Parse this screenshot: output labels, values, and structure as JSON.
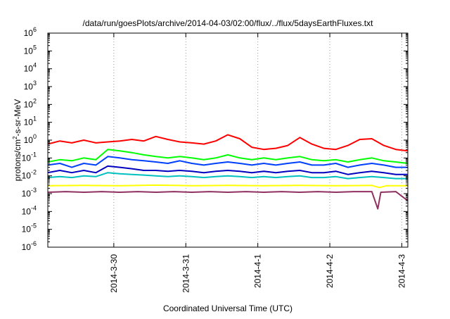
{
  "chart_data": {
    "type": "line",
    "title": "/data/run/goesPlots/archive/2014-04-03/02:00/flux/../flux/5daysEarthFluxes.txt",
    "xlabel": "Coordinated Universal Time (UTC)",
    "ylabel": "protons/cm²-s-sr-MeV",
    "ylabel_parts": {
      "base": "protons/cm",
      "sup": "2",
      "rest": "-s-sr-MeV"
    },
    "y_scale": "log",
    "ylim": [
      1e-06,
      1000000.0
    ],
    "y_ticks": [
      {
        "exp": -6,
        "base": "10",
        "sup": "-6"
      },
      {
        "exp": -5,
        "base": "10",
        "sup": "-5"
      },
      {
        "exp": -4,
        "base": "10",
        "sup": "-4"
      },
      {
        "exp": -3,
        "base": "10",
        "sup": "-3"
      },
      {
        "exp": -2,
        "base": "10",
        "sup": "-2"
      },
      {
        "exp": -1,
        "base": "10",
        "sup": "-1"
      },
      {
        "exp": 0,
        "base": "10",
        "sup": "0"
      },
      {
        "exp": 1,
        "base": "10",
        "sup": "1"
      },
      {
        "exp": 2,
        "base": "10",
        "sup": "2"
      },
      {
        "exp": 3,
        "base": "10",
        "sup": "3"
      },
      {
        "exp": 4,
        "base": "10",
        "sup": "4"
      },
      {
        "exp": 5,
        "base": "10",
        "sup": "5"
      },
      {
        "exp": 6,
        "base": "10",
        "sup": "6"
      }
    ],
    "xlim": [
      "2014-03-29T02:00",
      "2014-04-03T02:00"
    ],
    "x_ticks": [
      {
        "value": "2014-03-30T00:00",
        "label": "2014-3-30"
      },
      {
        "value": "2014-03-31T00:00",
        "label": "2014-3-31"
      },
      {
        "value": "2014-04-01T00:00",
        "label": "2014-4-1"
      },
      {
        "value": "2014-04-02T00:00",
        "label": "2014-4-2"
      },
      {
        "value": "2014-04-03T00:00",
        "label": "2014-4-3"
      }
    ],
    "grid": "vertical dotted at x ticks",
    "series": [
      {
        "color": "#ff0000",
        "points": [
          [
            "2014-03-29T02:00",
            0.6
          ],
          [
            "2014-03-29T06:00",
            0.9
          ],
          [
            "2014-03-29T10:00",
            0.7
          ],
          [
            "2014-03-29T14:00",
            1.0
          ],
          [
            "2014-03-29T18:00",
            0.7
          ],
          [
            "2014-03-29T22:00",
            0.8
          ],
          [
            "2014-03-30T02:00",
            0.9
          ],
          [
            "2014-03-30T06:00",
            1.1
          ],
          [
            "2014-03-30T10:00",
            0.9
          ],
          [
            "2014-03-30T14:00",
            1.6
          ],
          [
            "2014-03-30T18:00",
            1.1
          ],
          [
            "2014-03-30T22:00",
            0.8
          ],
          [
            "2014-03-31T02:00",
            0.7
          ],
          [
            "2014-03-31T06:00",
            0.6
          ],
          [
            "2014-03-31T10:00",
            0.9
          ],
          [
            "2014-03-31T14:00",
            2.0
          ],
          [
            "2014-03-31T18:00",
            1.2
          ],
          [
            "2014-03-31T22:00",
            0.4
          ],
          [
            "2014-04-01T02:00",
            0.3
          ],
          [
            "2014-04-01T06:00",
            0.35
          ],
          [
            "2014-04-01T10:00",
            0.5
          ],
          [
            "2014-04-01T14:00",
            1.4
          ],
          [
            "2014-04-01T18:00",
            0.6
          ],
          [
            "2014-04-01T22:00",
            0.35
          ],
          [
            "2014-04-02T02:00",
            0.3
          ],
          [
            "2014-04-02T06:00",
            0.5
          ],
          [
            "2014-04-02T10:00",
            1.1
          ],
          [
            "2014-04-02T14:00",
            1.2
          ],
          [
            "2014-04-02T18:00",
            0.5
          ],
          [
            "2014-04-02T22:00",
            0.3
          ],
          [
            "2014-04-03T02:00",
            0.25
          ]
        ]
      },
      {
        "color": "#00ff00",
        "points": [
          [
            "2014-03-29T02:00",
            0.06
          ],
          [
            "2014-03-29T06:00",
            0.08
          ],
          [
            "2014-03-29T10:00",
            0.07
          ],
          [
            "2014-03-29T14:00",
            0.1
          ],
          [
            "2014-03-29T18:00",
            0.08
          ],
          [
            "2014-03-29T22:00",
            0.3
          ],
          [
            "2014-03-30T02:00",
            0.25
          ],
          [
            "2014-03-30T06:00",
            0.2
          ],
          [
            "2014-03-30T10:00",
            0.15
          ],
          [
            "2014-03-30T14:00",
            0.12
          ],
          [
            "2014-03-30T18:00",
            0.1
          ],
          [
            "2014-03-30T22:00",
            0.12
          ],
          [
            "2014-03-31T02:00",
            0.1
          ],
          [
            "2014-03-31T06:00",
            0.08
          ],
          [
            "2014-03-31T10:00",
            0.1
          ],
          [
            "2014-03-31T14:00",
            0.15
          ],
          [
            "2014-03-31T18:00",
            0.1
          ],
          [
            "2014-03-31T22:00",
            0.08
          ],
          [
            "2014-04-01T02:00",
            0.1
          ],
          [
            "2014-04-01T06:00",
            0.08
          ],
          [
            "2014-04-01T10:00",
            0.1
          ],
          [
            "2014-04-01T14:00",
            0.12
          ],
          [
            "2014-04-01T18:00",
            0.08
          ],
          [
            "2014-04-01T22:00",
            0.07
          ],
          [
            "2014-04-02T02:00",
            0.08
          ],
          [
            "2014-04-02T06:00",
            0.06
          ],
          [
            "2014-04-02T10:00",
            0.08
          ],
          [
            "2014-04-02T14:00",
            0.1
          ],
          [
            "2014-04-02T18:00",
            0.07
          ],
          [
            "2014-04-02T22:00",
            0.06
          ],
          [
            "2014-04-03T02:00",
            0.05
          ]
        ]
      },
      {
        "color": "#0040ff",
        "points": [
          [
            "2014-03-29T02:00",
            0.04
          ],
          [
            "2014-03-29T06:00",
            0.05
          ],
          [
            "2014-03-29T10:00",
            0.03
          ],
          [
            "2014-03-29T14:00",
            0.05
          ],
          [
            "2014-03-29T18:00",
            0.04
          ],
          [
            "2014-03-29T22:00",
            0.12
          ],
          [
            "2014-03-30T02:00",
            0.1
          ],
          [
            "2014-03-30T06:00",
            0.08
          ],
          [
            "2014-03-30T10:00",
            0.07
          ],
          [
            "2014-03-30T14:00",
            0.06
          ],
          [
            "2014-03-30T18:00",
            0.05
          ],
          [
            "2014-03-30T22:00",
            0.07
          ],
          [
            "2014-03-31T02:00",
            0.05
          ],
          [
            "2014-03-31T06:00",
            0.04
          ],
          [
            "2014-03-31T10:00",
            0.05
          ],
          [
            "2014-03-31T14:00",
            0.06
          ],
          [
            "2014-03-31T18:00",
            0.05
          ],
          [
            "2014-03-31T22:00",
            0.04
          ],
          [
            "2014-04-01T02:00",
            0.05
          ],
          [
            "2014-04-01T06:00",
            0.04
          ],
          [
            "2014-04-01T10:00",
            0.05
          ],
          [
            "2014-04-01T14:00",
            0.06
          ],
          [
            "2014-04-01T18:00",
            0.04
          ],
          [
            "2014-04-01T22:00",
            0.04
          ],
          [
            "2014-04-02T02:00",
            0.05
          ],
          [
            "2014-04-02T06:00",
            0.03
          ],
          [
            "2014-04-02T10:00",
            0.04
          ],
          [
            "2014-04-02T14:00",
            0.05
          ],
          [
            "2014-04-02T18:00",
            0.04
          ],
          [
            "2014-04-02T22:00",
            0.03
          ],
          [
            "2014-04-03T02:00",
            0.03
          ]
        ]
      },
      {
        "color": "#0000c0",
        "points": [
          [
            "2014-03-29T02:00",
            0.015
          ],
          [
            "2014-03-29T06:00",
            0.02
          ],
          [
            "2014-03-29T10:00",
            0.015
          ],
          [
            "2014-03-29T14:00",
            0.02
          ],
          [
            "2014-03-29T18:00",
            0.015
          ],
          [
            "2014-03-29T22:00",
            0.035
          ],
          [
            "2014-03-30T02:00",
            0.03
          ],
          [
            "2014-03-30T06:00",
            0.025
          ],
          [
            "2014-03-30T10:00",
            0.02
          ],
          [
            "2014-03-30T14:00",
            0.02
          ],
          [
            "2014-03-30T18:00",
            0.018
          ],
          [
            "2014-03-30T22:00",
            0.02
          ],
          [
            "2014-03-31T02:00",
            0.018
          ],
          [
            "2014-03-31T06:00",
            0.015
          ],
          [
            "2014-03-31T10:00",
            0.018
          ],
          [
            "2014-03-31T14:00",
            0.02
          ],
          [
            "2014-03-31T18:00",
            0.018
          ],
          [
            "2014-03-31T22:00",
            0.015
          ],
          [
            "2014-04-01T02:00",
            0.018
          ],
          [
            "2014-04-01T06:00",
            0.015
          ],
          [
            "2014-04-01T10:00",
            0.018
          ],
          [
            "2014-04-01T14:00",
            0.02
          ],
          [
            "2014-04-01T18:00",
            0.015
          ],
          [
            "2014-04-01T22:00",
            0.015
          ],
          [
            "2014-04-02T02:00",
            0.018
          ],
          [
            "2014-04-02T06:00",
            0.012
          ],
          [
            "2014-04-02T10:00",
            0.015
          ],
          [
            "2014-04-02T14:00",
            0.018
          ],
          [
            "2014-04-02T18:00",
            0.015
          ],
          [
            "2014-04-02T22:00",
            0.012
          ],
          [
            "2014-04-03T02:00",
            0.012
          ]
        ]
      },
      {
        "color": "#00c0c0",
        "points": [
          [
            "2014-03-29T02:00",
            0.008
          ],
          [
            "2014-03-29T06:00",
            0.009
          ],
          [
            "2014-03-29T10:00",
            0.008
          ],
          [
            "2014-03-29T14:00",
            0.01
          ],
          [
            "2014-03-29T18:00",
            0.009
          ],
          [
            "2014-03-29T22:00",
            0.015
          ],
          [
            "2014-03-30T02:00",
            0.013
          ],
          [
            "2014-03-30T06:00",
            0.012
          ],
          [
            "2014-03-30T10:00",
            0.011
          ],
          [
            "2014-03-30T14:00",
            0.01
          ],
          [
            "2014-03-30T18:00",
            0.009
          ],
          [
            "2014-03-30T22:00",
            0.01
          ],
          [
            "2014-03-31T02:00",
            0.009
          ],
          [
            "2014-03-31T06:00",
            0.008
          ],
          [
            "2014-03-31T10:00",
            0.009
          ],
          [
            "2014-03-31T14:00",
            0.01
          ],
          [
            "2014-03-31T18:00",
            0.009
          ],
          [
            "2014-03-31T22:00",
            0.008
          ],
          [
            "2014-04-01T02:00",
            0.009
          ],
          [
            "2014-04-01T06:00",
            0.008
          ],
          [
            "2014-04-01T10:00",
            0.009
          ],
          [
            "2014-04-01T14:00",
            0.01
          ],
          [
            "2014-04-01T18:00",
            0.008
          ],
          [
            "2014-04-01T22:00",
            0.008
          ],
          [
            "2014-04-02T02:00",
            0.009
          ],
          [
            "2014-04-02T06:00",
            0.007
          ],
          [
            "2014-04-02T10:00",
            0.008
          ],
          [
            "2014-04-02T14:00",
            0.009
          ],
          [
            "2014-04-02T18:00",
            0.008
          ],
          [
            "2014-04-02T22:00",
            0.007
          ],
          [
            "2014-04-03T02:00",
            0.007
          ]
        ]
      },
      {
        "color": "#ffff00",
        "points": [
          [
            "2014-03-29T02:00",
            0.0028
          ],
          [
            "2014-03-29T14:00",
            0.0029
          ],
          [
            "2014-03-30T02:00",
            0.0028
          ],
          [
            "2014-03-30T14:00",
            0.003
          ],
          [
            "2014-03-31T02:00",
            0.0028
          ],
          [
            "2014-03-31T14:00",
            0.0029
          ],
          [
            "2014-04-01T02:00",
            0.0028
          ],
          [
            "2014-04-01T14:00",
            0.0029
          ],
          [
            "2014-04-02T02:00",
            0.0028
          ],
          [
            "2014-04-02T14:00",
            0.0029
          ],
          [
            "2014-04-02T16:30",
            0.0022
          ],
          [
            "2014-04-02T19:00",
            0.0028
          ],
          [
            "2014-04-03T02:00",
            0.0028
          ]
        ]
      },
      {
        "color": "#903060",
        "points": [
          [
            "2014-03-29T02:00",
            0.0012
          ],
          [
            "2014-03-29T08:00",
            0.0013
          ],
          [
            "2014-03-29T14:00",
            0.0012
          ],
          [
            "2014-03-29T20:00",
            0.0013
          ],
          [
            "2014-03-30T02:00",
            0.0012
          ],
          [
            "2014-03-30T08:00",
            0.0013
          ],
          [
            "2014-03-30T14:00",
            0.0012
          ],
          [
            "2014-03-30T20:00",
            0.0013
          ],
          [
            "2014-03-31T02:00",
            0.0012
          ],
          [
            "2014-03-31T08:00",
            0.0013
          ],
          [
            "2014-03-31T14:00",
            0.0012
          ],
          [
            "2014-03-31T20:00",
            0.0013
          ],
          [
            "2014-04-01T02:00",
            0.0012
          ],
          [
            "2014-04-01T08:00",
            0.0013
          ],
          [
            "2014-04-01T14:00",
            0.0012
          ],
          [
            "2014-04-01T20:00",
            0.0013
          ],
          [
            "2014-04-02T02:00",
            0.0012
          ],
          [
            "2014-04-02T08:00",
            0.0013
          ],
          [
            "2014-04-02T14:00",
            0.0013
          ],
          [
            "2014-04-02T16:00",
            0.00014
          ],
          [
            "2014-04-02T17:00",
            0.0012
          ],
          [
            "2014-04-02T22:00",
            0.0013
          ],
          [
            "2014-04-03T02:00",
            0.0004
          ]
        ]
      }
    ]
  }
}
